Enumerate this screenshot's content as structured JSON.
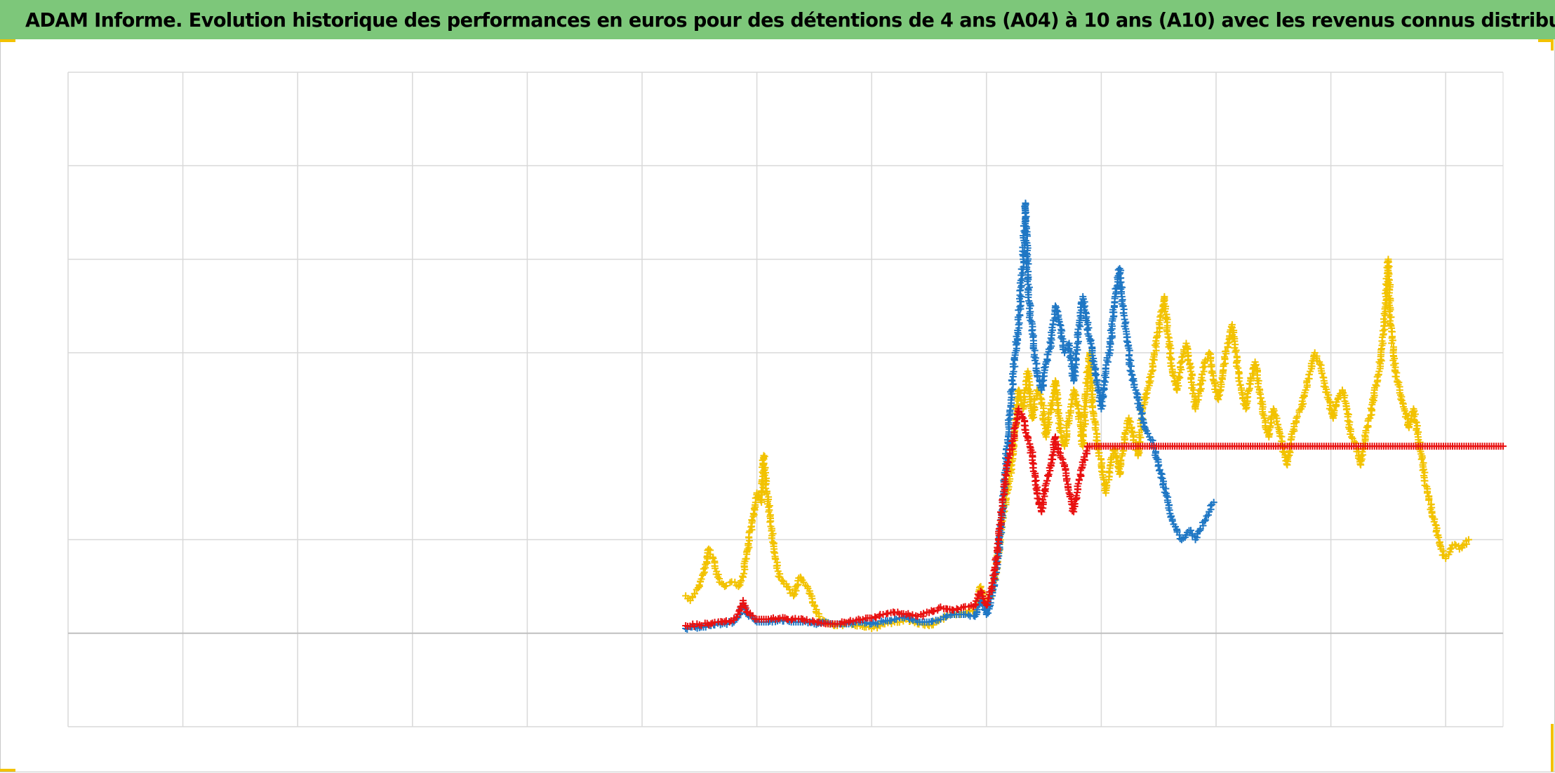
{
  "title": "ADAM Informe. Evolution historique des performances en euros pour des détentions de 4 ans (A04) à 10 ans (A10) avec les revenus connus distribués",
  "colors": {
    "title_bar": "#7dc77a",
    "grid": "#d9d9d9",
    "baseline": "#bfbfbf",
    "accent_corner": "#f2c200"
  },
  "chart_data": {
    "type": "scatter",
    "marker": "plus",
    "title": "ADAM Informe. Evolution historique des performances en euros pour des détentions de 4 ans (A04) à 10 ans (A10) avec les revenus connus distribués",
    "xlabel": "",
    "ylabel": "",
    "xlim": [
      0,
      12.5
    ],
    "ylim": [
      -1,
      6
    ],
    "x_gridlines": [
      0,
      1,
      2,
      3,
      4,
      5,
      6,
      7,
      8,
      9,
      10,
      11,
      12
    ],
    "y_gridlines": [
      -1,
      0,
      1,
      3,
      4,
      5,
      6
    ],
    "baseline_y": 0,
    "grid": true,
    "legend": "none",
    "series": [
      {
        "color": "#f2c200",
        "points": [
          [
            5.38,
            0.4
          ],
          [
            5.42,
            0.35
          ],
          [
            5.5,
            0.5
          ],
          [
            5.55,
            0.7
          ],
          [
            5.58,
            0.9
          ],
          [
            5.62,
            0.8
          ],
          [
            5.66,
            0.6
          ],
          [
            5.72,
            0.5
          ],
          [
            5.78,
            0.55
          ],
          [
            5.84,
            0.5
          ],
          [
            5.88,
            0.6
          ],
          [
            5.92,
            0.9
          ],
          [
            5.96,
            1.2
          ],
          [
            6.0,
            1.5
          ],
          [
            6.04,
            1.4
          ],
          [
            6.06,
            1.9
          ],
          [
            6.08,
            1.6
          ],
          [
            6.12,
            1.2
          ],
          [
            6.16,
            0.8
          ],
          [
            6.2,
            0.6
          ],
          [
            6.26,
            0.5
          ],
          [
            6.32,
            0.4
          ],
          [
            6.38,
            0.6
          ],
          [
            6.44,
            0.5
          ],
          [
            6.5,
            0.3
          ],
          [
            6.55,
            0.15
          ],
          [
            6.62,
            0.1
          ],
          [
            6.7,
            0.08
          ],
          [
            6.8,
            0.1
          ],
          [
            6.9,
            0.08
          ],
          [
            7.0,
            0.05
          ],
          [
            7.1,
            0.1
          ],
          [
            7.2,
            0.12
          ],
          [
            7.3,
            0.15
          ],
          [
            7.4,
            0.1
          ],
          [
            7.5,
            0.08
          ],
          [
            7.6,
            0.15
          ],
          [
            7.7,
            0.2
          ],
          [
            7.8,
            0.22
          ],
          [
            7.9,
            0.25
          ],
          [
            7.95,
            0.5
          ],
          [
            8.0,
            0.3
          ],
          [
            8.05,
            0.45
          ],
          [
            8.1,
            0.8
          ],
          [
            8.14,
            1.2
          ],
          [
            8.18,
            1.5
          ],
          [
            8.22,
            1.8
          ],
          [
            8.25,
            2.2
          ],
          [
            8.28,
            2.6
          ],
          [
            8.32,
            2.4
          ],
          [
            8.36,
            2.8
          ],
          [
            8.4,
            2.3
          ],
          [
            8.44,
            2.6
          ],
          [
            8.48,
            2.5
          ],
          [
            8.52,
            2.1
          ],
          [
            8.56,
            2.4
          ],
          [
            8.6,
            2.7
          ],
          [
            8.64,
            2.2
          ],
          [
            8.68,
            2.0
          ],
          [
            8.72,
            2.3
          ],
          [
            8.76,
            2.6
          ],
          [
            8.8,
            2.4
          ],
          [
            8.84,
            2.0
          ],
          [
            8.88,
            2.8
          ],
          [
            8.9,
            3.0
          ],
          [
            8.92,
            2.5
          ],
          [
            8.96,
            2.1
          ],
          [
            9.0,
            1.8
          ],
          [
            9.04,
            1.5
          ],
          [
            9.08,
            1.8
          ],
          [
            9.12,
            2.0
          ],
          [
            9.16,
            1.7
          ],
          [
            9.2,
            2.1
          ],
          [
            9.24,
            2.3
          ],
          [
            9.28,
            2.1
          ],
          [
            9.32,
            1.9
          ],
          [
            9.36,
            2.4
          ],
          [
            9.4,
            2.6
          ],
          [
            9.44,
            2.8
          ],
          [
            9.48,
            3.1
          ],
          [
            9.52,
            3.4
          ],
          [
            9.55,
            3.6
          ],
          [
            9.58,
            3.2
          ],
          [
            9.62,
            2.8
          ],
          [
            9.66,
            2.6
          ],
          [
            9.7,
            2.9
          ],
          [
            9.74,
            3.1
          ],
          [
            9.78,
            2.8
          ],
          [
            9.82,
            2.4
          ],
          [
            9.86,
            2.6
          ],
          [
            9.9,
            2.9
          ],
          [
            9.94,
            3.0
          ],
          [
            9.98,
            2.7
          ],
          [
            10.02,
            2.5
          ],
          [
            10.06,
            2.8
          ],
          [
            10.1,
            3.1
          ],
          [
            10.14,
            3.3
          ],
          [
            10.18,
            2.9
          ],
          [
            10.22,
            2.6
          ],
          [
            10.26,
            2.4
          ],
          [
            10.3,
            2.7
          ],
          [
            10.34,
            2.9
          ],
          [
            10.38,
            2.6
          ],
          [
            10.42,
            2.3
          ],
          [
            10.46,
            2.1
          ],
          [
            10.5,
            2.4
          ],
          [
            10.54,
            2.2
          ],
          [
            10.58,
            2.0
          ],
          [
            10.62,
            1.8
          ],
          [
            10.66,
            2.1
          ],
          [
            10.7,
            2.3
          ],
          [
            10.74,
            2.4
          ],
          [
            10.78,
            2.6
          ],
          [
            10.82,
            2.8
          ],
          [
            10.86,
            3.0
          ],
          [
            10.9,
            2.9
          ],
          [
            10.94,
            2.7
          ],
          [
            10.98,
            2.5
          ],
          [
            11.02,
            2.3
          ],
          [
            11.06,
            2.5
          ],
          [
            11.1,
            2.6
          ],
          [
            11.14,
            2.4
          ],
          [
            11.18,
            2.1
          ],
          [
            11.22,
            2.0
          ],
          [
            11.26,
            1.8
          ],
          [
            11.3,
            2.1
          ],
          [
            11.34,
            2.3
          ],
          [
            11.38,
            2.6
          ],
          [
            11.42,
            2.8
          ],
          [
            11.46,
            3.2
          ],
          [
            11.48,
            3.6
          ],
          [
            11.5,
            4.0
          ],
          [
            11.52,
            3.3
          ],
          [
            11.56,
            2.8
          ],
          [
            11.6,
            2.6
          ],
          [
            11.64,
            2.4
          ],
          [
            11.68,
            2.2
          ],
          [
            11.72,
            2.4
          ],
          [
            11.76,
            2.1
          ],
          [
            11.8,
            1.8
          ],
          [
            11.84,
            1.5
          ],
          [
            11.88,
            1.3
          ],
          [
            11.92,
            1.1
          ],
          [
            11.96,
            0.9
          ],
          [
            12.0,
            0.8
          ],
          [
            12.04,
            0.9
          ],
          [
            12.08,
            0.95
          ],
          [
            12.12,
            0.9
          ],
          [
            12.16,
            0.95
          ],
          [
            12.2,
            1.0
          ]
        ]
      },
      {
        "color": "#1f77c4",
        "points": [
          [
            5.38,
            0.05
          ],
          [
            5.5,
            0.06
          ],
          [
            5.6,
            0.08
          ],
          [
            5.7,
            0.1
          ],
          [
            5.8,
            0.12
          ],
          [
            5.85,
            0.2
          ],
          [
            5.88,
            0.3
          ],
          [
            5.92,
            0.2
          ],
          [
            6.0,
            0.12
          ],
          [
            6.1,
            0.12
          ],
          [
            6.2,
            0.14
          ],
          [
            6.3,
            0.12
          ],
          [
            6.4,
            0.12
          ],
          [
            6.5,
            0.1
          ],
          [
            6.6,
            0.12
          ],
          [
            6.7,
            0.1
          ],
          [
            6.8,
            0.1
          ],
          [
            6.9,
            0.12
          ],
          [
            7.0,
            0.1
          ],
          [
            7.1,
            0.12
          ],
          [
            7.2,
            0.15
          ],
          [
            7.3,
            0.18
          ],
          [
            7.4,
            0.12
          ],
          [
            7.5,
            0.12
          ],
          [
            7.6,
            0.15
          ],
          [
            7.7,
            0.2
          ],
          [
            7.8,
            0.2
          ],
          [
            7.9,
            0.18
          ],
          [
            7.95,
            0.35
          ],
          [
            8.0,
            0.2
          ],
          [
            8.05,
            0.4
          ],
          [
            8.1,
            0.8
          ],
          [
            8.14,
            1.3
          ],
          [
            8.18,
            2.0
          ],
          [
            8.22,
            2.6
          ],
          [
            8.25,
            3.0
          ],
          [
            8.28,
            3.3
          ],
          [
            8.3,
            3.7
          ],
          [
            8.32,
            4.0
          ],
          [
            8.34,
            4.6
          ],
          [
            8.36,
            3.8
          ],
          [
            8.38,
            3.4
          ],
          [
            8.4,
            3.2
          ],
          [
            8.44,
            2.8
          ],
          [
            8.48,
            2.6
          ],
          [
            8.52,
            2.9
          ],
          [
            8.56,
            3.1
          ],
          [
            8.6,
            3.5
          ],
          [
            8.64,
            3.3
          ],
          [
            8.68,
            3.0
          ],
          [
            8.72,
            3.1
          ],
          [
            8.76,
            2.7
          ],
          [
            8.8,
            3.2
          ],
          [
            8.84,
            3.6
          ],
          [
            8.88,
            3.3
          ],
          [
            8.92,
            3.0
          ],
          [
            8.96,
            2.7
          ],
          [
            9.0,
            2.4
          ],
          [
            9.04,
            2.8
          ],
          [
            9.08,
            3.1
          ],
          [
            9.12,
            3.6
          ],
          [
            9.16,
            3.9
          ],
          [
            9.18,
            3.6
          ],
          [
            9.22,
            3.2
          ],
          [
            9.26,
            2.8
          ],
          [
            9.3,
            2.6
          ],
          [
            9.34,
            2.4
          ],
          [
            9.38,
            2.2
          ],
          [
            9.42,
            2.1
          ],
          [
            9.46,
            2.0
          ],
          [
            9.5,
            1.8
          ],
          [
            9.54,
            1.6
          ],
          [
            9.58,
            1.4
          ],
          [
            9.62,
            1.2
          ],
          [
            9.66,
            1.1
          ],
          [
            9.7,
            1.0
          ],
          [
            9.74,
            1.05
          ],
          [
            9.78,
            1.1
          ],
          [
            9.82,
            1.0
          ],
          [
            9.86,
            1.1
          ],
          [
            9.9,
            1.2
          ],
          [
            9.94,
            1.3
          ],
          [
            9.98,
            1.4
          ]
        ]
      },
      {
        "color": "#e81010",
        "points": [
          [
            5.38,
            0.08
          ],
          [
            5.5,
            0.09
          ],
          [
            5.6,
            0.1
          ],
          [
            5.7,
            0.12
          ],
          [
            5.8,
            0.14
          ],
          [
            5.85,
            0.25
          ],
          [
            5.88,
            0.35
          ],
          [
            5.92,
            0.22
          ],
          [
            6.0,
            0.15
          ],
          [
            6.1,
            0.15
          ],
          [
            6.2,
            0.16
          ],
          [
            6.3,
            0.14
          ],
          [
            6.4,
            0.15
          ],
          [
            6.5,
            0.12
          ],
          [
            6.6,
            0.1
          ],
          [
            6.7,
            0.1
          ],
          [
            6.8,
            0.12
          ],
          [
            6.9,
            0.14
          ],
          [
            7.0,
            0.16
          ],
          [
            7.1,
            0.2
          ],
          [
            7.2,
            0.22
          ],
          [
            7.3,
            0.2
          ],
          [
            7.4,
            0.18
          ],
          [
            7.5,
            0.22
          ],
          [
            7.6,
            0.28
          ],
          [
            7.7,
            0.25
          ],
          [
            7.8,
            0.28
          ],
          [
            7.9,
            0.3
          ],
          [
            7.95,
            0.45
          ],
          [
            8.0,
            0.3
          ],
          [
            8.05,
            0.5
          ],
          [
            8.1,
            0.9
          ],
          [
            8.14,
            1.4
          ],
          [
            8.18,
            1.8
          ],
          [
            8.22,
            2.0
          ],
          [
            8.25,
            2.2
          ],
          [
            8.28,
            2.4
          ],
          [
            8.32,
            2.3
          ],
          [
            8.36,
            2.1
          ],
          [
            8.4,
            1.9
          ],
          [
            8.44,
            1.5
          ],
          [
            8.48,
            1.3
          ],
          [
            8.52,
            1.6
          ],
          [
            8.56,
            1.8
          ],
          [
            8.6,
            2.1
          ],
          [
            8.64,
            1.9
          ],
          [
            8.68,
            1.8
          ],
          [
            8.72,
            1.5
          ],
          [
            8.76,
            1.3
          ],
          [
            8.8,
            1.6
          ],
          [
            8.84,
            1.8
          ],
          [
            8.88,
            2.0
          ],
          [
            8.92,
            2.0
          ],
          [
            9.0,
            2.0
          ],
          [
            9.2,
            2.0
          ],
          [
            9.4,
            2.0
          ],
          [
            9.6,
            2.0
          ],
          [
            9.8,
            2.0
          ],
          [
            10.0,
            2.0
          ],
          [
            10.2,
            2.0
          ],
          [
            10.4,
            2.0
          ],
          [
            10.6,
            2.0
          ],
          [
            10.8,
            2.0
          ],
          [
            11.0,
            2.0
          ],
          [
            11.2,
            2.0
          ],
          [
            11.4,
            2.0
          ],
          [
            11.6,
            2.0
          ],
          [
            11.8,
            2.0
          ],
          [
            12.0,
            2.0
          ],
          [
            12.2,
            2.0
          ],
          [
            12.4,
            2.0
          ],
          [
            12.5,
            2.0
          ]
        ]
      }
    ]
  }
}
